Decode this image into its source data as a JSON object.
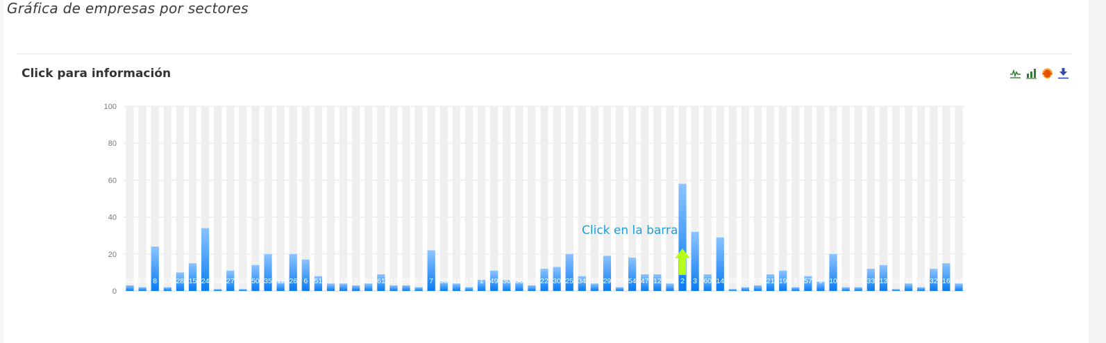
{
  "page": {
    "title": "Gráfica de empresas por sectores"
  },
  "card": {
    "title": "Click para información",
    "annotation": "Click en la barra"
  },
  "toolbox": [
    {
      "icon": "line-chart-icon",
      "color": "#2e7d32"
    },
    {
      "icon": "bar-chart-icon",
      "color": "#2e7d32"
    },
    {
      "icon": "restore-icon",
      "color": "#e65100"
    },
    {
      "icon": "download-icon",
      "color": "#3949ab"
    }
  ],
  "colors": {
    "bar_top": "#8cc4ff",
    "bar_bottom": "#0a7bf2",
    "background_bar": "#efefef",
    "arrow": "#b7ff1a",
    "annotation": "#1e9fd8"
  },
  "chart_data": {
    "type": "bar",
    "ylim": [
      0,
      100
    ],
    "yticks": [
      0,
      20,
      40,
      60,
      80,
      100
    ],
    "grid": true,
    "categories": [
      "44",
      "57",
      "8",
      "13",
      "28",
      "15",
      "24",
      "38",
      "27",
      "40",
      "50",
      "35",
      "11",
      "26",
      "6",
      "51",
      "5",
      "43",
      "3",
      "31",
      "61",
      "18",
      "55",
      "52",
      "7",
      "58",
      "41",
      "17",
      "1",
      "49",
      "30",
      "56",
      "60",
      "22",
      "30",
      "25",
      "34",
      "10",
      "29",
      "39",
      "54",
      "47",
      "12",
      "45",
      "2",
      "3",
      "60",
      "14",
      "33",
      "20",
      "53",
      "21",
      "19",
      "9",
      "57",
      "9",
      "10",
      "46",
      "32",
      "33",
      "13",
      "59",
      "37",
      "42",
      "32",
      "16",
      "46"
    ],
    "values": [
      3,
      2,
      24,
      2,
      10,
      15,
      34,
      1,
      11,
      1,
      14,
      20,
      5,
      20,
      17,
      8,
      4,
      4,
      3,
      4,
      9,
      3,
      3,
      2,
      22,
      5,
      4,
      2,
      6,
      11,
      6,
      5,
      3,
      12,
      13,
      20,
      8,
      4,
      19,
      2,
      18,
      9,
      9,
      4,
      58,
      32,
      9,
      29,
      1,
      2,
      3,
      9,
      11,
      2,
      8,
      5,
      20,
      2,
      2,
      12,
      14,
      1,
      4,
      2,
      12,
      15,
      4
    ]
  }
}
